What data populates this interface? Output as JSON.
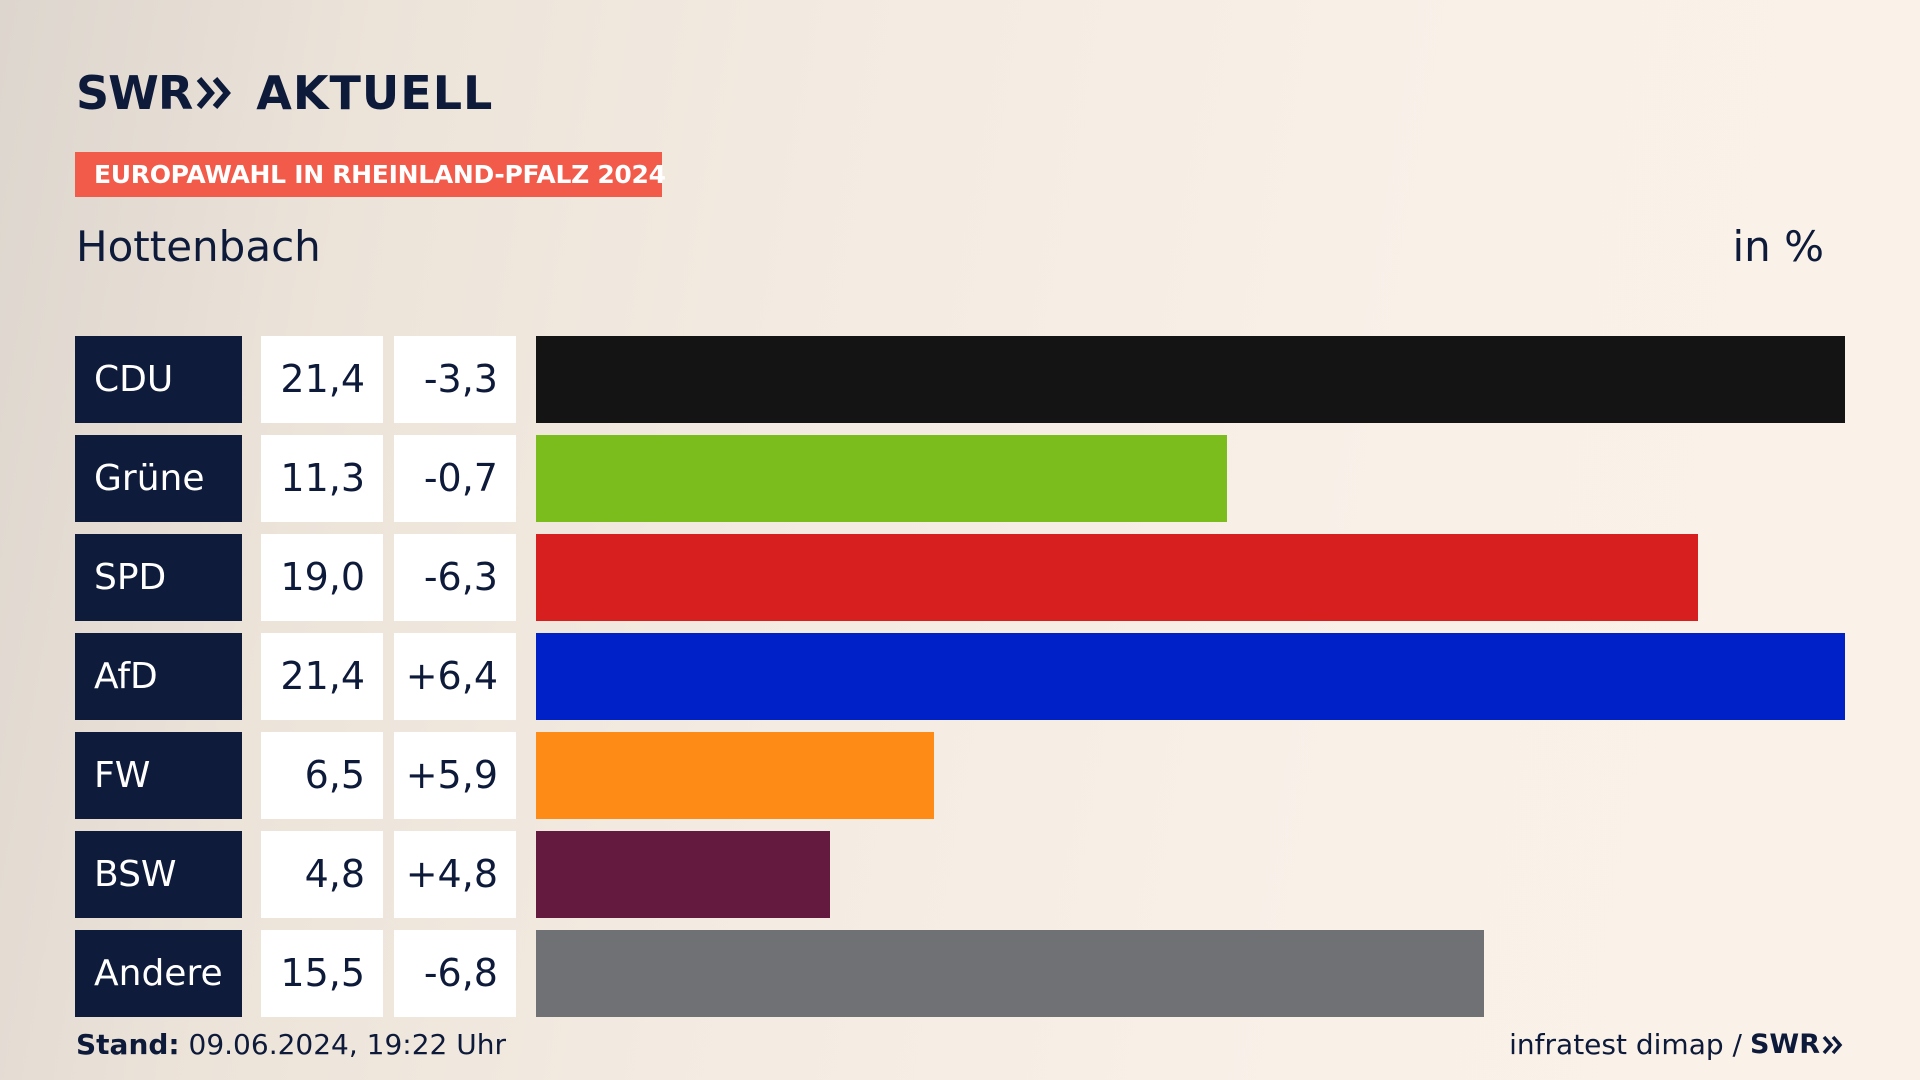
{
  "header": {
    "brand_name": "SWR",
    "brand_product": "AKTUELL",
    "banner": "EUROPAWAHL IN RHEINLAND-PFALZ 2024",
    "place": "Hottenbach",
    "unit": "in %"
  },
  "colors": {
    "navy": "#0f1b3a",
    "banner_red": "#f25a4a",
    "CDU": "#141414",
    "Grüne": "#7bbd1d",
    "SPD": "#d71f1f",
    "AfD": "#0020c8",
    "FW": "#fd8b16",
    "BSW": "#641a3f",
    "Andere": "#707174"
  },
  "chart_data": {
    "type": "bar",
    "orientation": "horizontal",
    "categories": [
      "CDU",
      "Grüne",
      "SPD",
      "AfD",
      "FW",
      "BSW",
      "Andere"
    ],
    "values_text": [
      "21,4",
      "11,3",
      "19,0",
      "21,4",
      "6,5",
      "4,8",
      "15,5"
    ],
    "values": [
      21.4,
      11.3,
      19.0,
      21.4,
      6.5,
      4.8,
      15.5
    ],
    "changes_text": [
      "-3,3",
      "-0,7",
      "-6,3",
      "+6,4",
      "+5,9",
      "+4,8",
      "-6,8"
    ],
    "changes": [
      -3.3,
      -0.7,
      -6.3,
      6.4,
      5.9,
      4.8,
      -6.8
    ],
    "xlim": [
      0,
      21.4
    ]
  },
  "footer": {
    "stand_label": "Stand:",
    "stand_value": "09.06.2024, 19:22 Uhr",
    "source": "infratest dimap /",
    "source_brand": "SWR"
  }
}
